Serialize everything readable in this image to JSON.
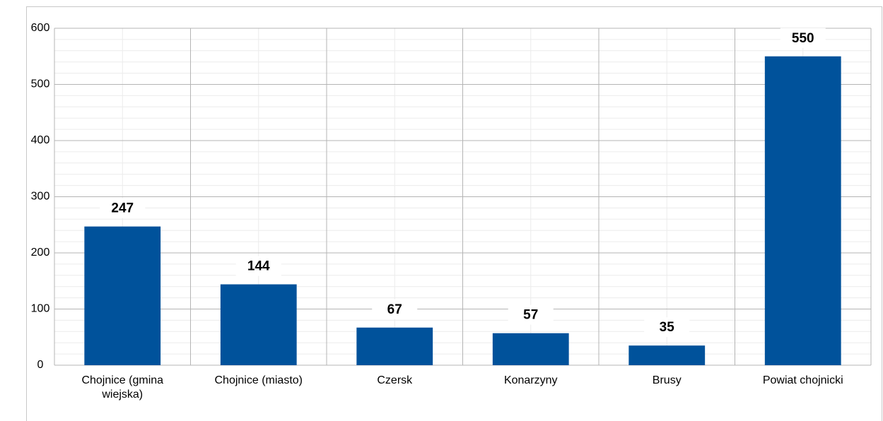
{
  "chart_data": {
    "type": "bar",
    "categories": [
      "Chojnice (gmina wiejska)",
      "Chojnice (miasto)",
      "Czersk",
      "Konarzyny",
      "Brusy",
      "Powiat chojnicki"
    ],
    "values": [
      247,
      144,
      67,
      57,
      35,
      550
    ],
    "color": "#00529b",
    "ylim": [
      0,
      600
    ],
    "yticks": [
      0,
      100,
      200,
      300,
      400,
      500,
      600
    ],
    "grid": true
  }
}
